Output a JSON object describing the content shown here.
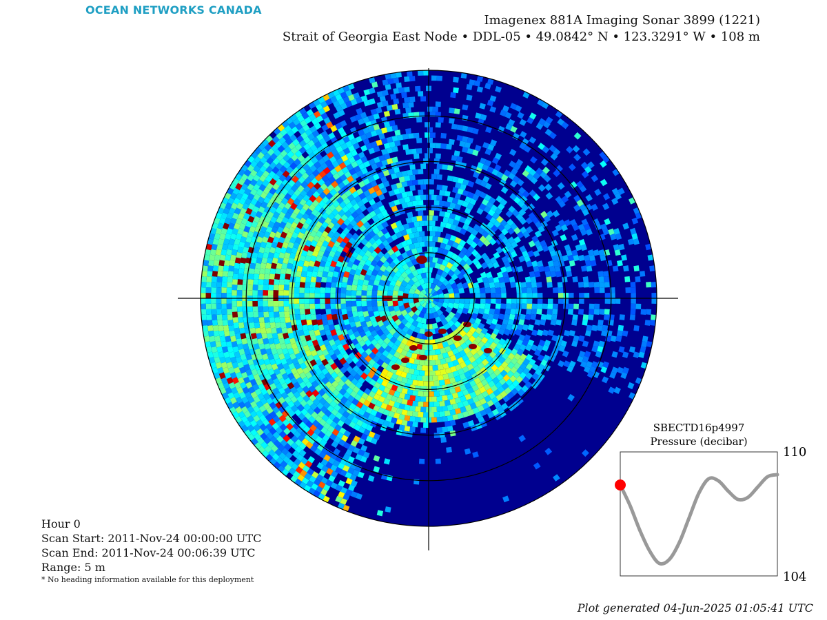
{
  "logo": {
    "text": "OCEAN NETWORKS CANADA"
  },
  "header": {
    "instrument": "Imagenex 881A Imaging Sonar 3899 (1221)",
    "location": "Strait of Georgia East Node • DDL-05 • 49.0842° N • 123.3291° W • 108 m"
  },
  "info": {
    "hour": "Hour 0",
    "scan_start": "Scan Start: 2011-Nov-24 00:00:00 UTC",
    "scan_end": "Scan End: 2011-Nov-24 00:06:39 UTC",
    "range": "Range: 5 m",
    "note": "* No heading information available for this deployment"
  },
  "footer": {
    "generated": "Plot generated 04-Jun-2025 01:05:41 UTC"
  },
  "chart_data": [
    {
      "type": "heatmap",
      "name": "polar sonar intensity image",
      "projection": "polar",
      "range_m": 5,
      "range_rings": 5,
      "crosshair": true,
      "colormap": "jet",
      "colors": {
        "background": "#00008f",
        "mid": "#0a52ff",
        "high": "#ffd400",
        "max": "#8b0000"
      }
    },
    {
      "type": "line",
      "title": "SBECTD16p4997",
      "subtitle": "Pressure (decibar)",
      "ylim": [
        104,
        110
      ],
      "y_ticks": [
        "110",
        "104"
      ],
      "y": [
        108.4,
        107.4,
        106.2,
        105.2,
        104.6,
        104.8,
        105.6,
        106.8,
        108.0,
        108.7,
        108.6,
        108.1,
        107.7,
        107.8,
        108.3,
        108.8,
        108.9
      ],
      "current_index": 0,
      "colors": {
        "line": "#999999",
        "marker": "#ff0000"
      }
    }
  ]
}
